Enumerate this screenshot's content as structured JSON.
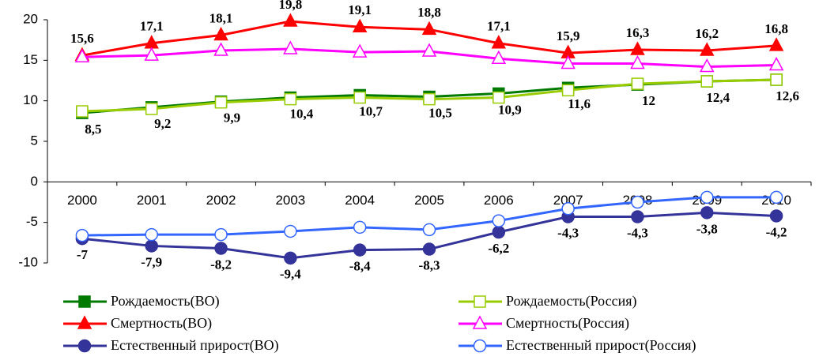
{
  "chart_data": {
    "type": "line",
    "categories": [
      "2000",
      "2001",
      "2002",
      "2003",
      "2004",
      "2005",
      "2006",
      "2007",
      "2008",
      "2009",
      "2010"
    ],
    "ylim": [
      -10,
      20
    ],
    "yticks": [
      -10,
      -5,
      0,
      5,
      10,
      15,
      20
    ],
    "series": [
      {
        "name": "Рождаемость(ВО)",
        "color": "#007a00",
        "marker": "square",
        "filled": true,
        "values": [
          8.5,
          9.2,
          9.9,
          10.4,
          10.7,
          10.5,
          10.9,
          11.6,
          12,
          12.4,
          12.6
        ],
        "value_labels": [
          "8,5",
          "9,2",
          "9,9",
          "10,4",
          "10,7",
          "10,5",
          "10,9",
          "11,6",
          "12",
          "12,4",
          "12,6"
        ]
      },
      {
        "name": "Рождаемость(Россия)",
        "color": "#99cc00",
        "marker": "square",
        "filled": false,
        "values": [
          8.7,
          9.0,
          9.8,
          10.2,
          10.4,
          10.2,
          10.4,
          11.3,
          12.1,
          12.4,
          12.6
        ]
      },
      {
        "name": "Смертность(ВО)",
        "color": "#ff0000",
        "marker": "triangle",
        "filled": true,
        "values": [
          15.6,
          17.1,
          18.1,
          19.8,
          19.1,
          18.8,
          17.1,
          15.9,
          16.3,
          16.2,
          16.8
        ],
        "value_labels": [
          "15,6",
          "17,1",
          "18,1",
          "19,8",
          "19,1",
          "18,8",
          "17,1",
          "15,9",
          "16,3",
          "16,2",
          "16,8"
        ]
      },
      {
        "name": "Смертность(Россия)",
        "color": "#ff00ff",
        "marker": "triangle",
        "filled": false,
        "values": [
          15.4,
          15.6,
          16.2,
          16.4,
          16.0,
          16.1,
          15.2,
          14.6,
          14.6,
          14.2,
          14.4
        ]
      },
      {
        "name": "Естественный прирост(ВО)",
        "color": "#333399",
        "marker": "circle",
        "filled": true,
        "values": [
          -7,
          -7.9,
          -8.2,
          -9.4,
          -8.4,
          -8.3,
          -6.2,
          -4.3,
          -4.3,
          -3.8,
          -4.2
        ],
        "value_labels": [
          "-7",
          "-7,9",
          "-8,2",
          "-9,4",
          "-8,4",
          "-8,3",
          "-6,2",
          "-4,3",
          "-4,3",
          "-3,8",
          "-4,2"
        ]
      },
      {
        "name": "Естественный прирост(Россия)",
        "color": "#3366ff",
        "marker": "circle",
        "filled": false,
        "values": [
          -6.6,
          -6.5,
          -6.5,
          -6.1,
          -5.6,
          -5.9,
          -4.8,
          -3.3,
          -2.5,
          -1.9,
          -1.9
        ]
      }
    ]
  }
}
